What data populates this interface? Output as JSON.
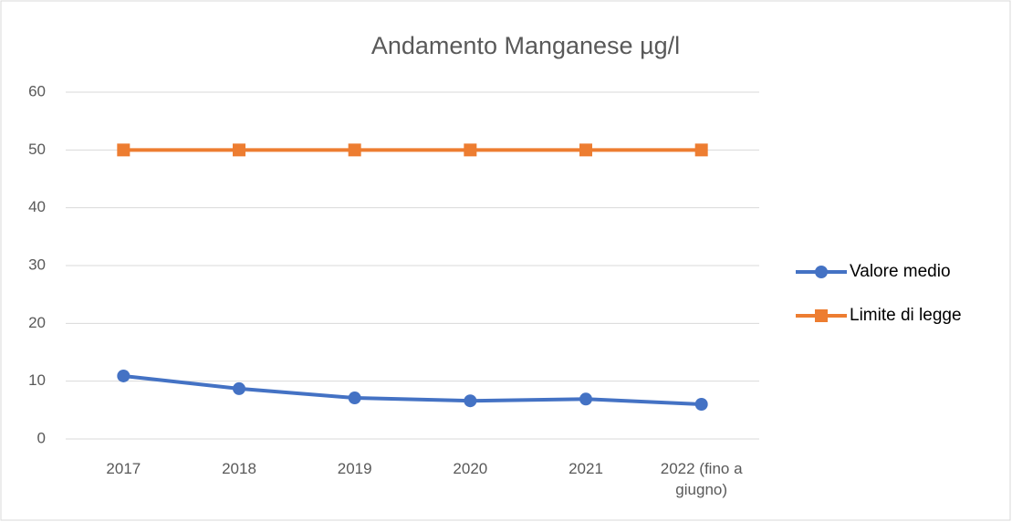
{
  "chart_data": {
    "type": "line",
    "title": "Andamento Manganese µg/l",
    "categories": [
      "2017",
      "2018",
      "2019",
      "2020",
      "2021",
      "2022 (fino a giugno)"
    ],
    "series": [
      {
        "name": "Valore medio",
        "color": "#4472c4",
        "marker": "circle",
        "values": [
          10.9,
          8.7,
          7.1,
          6.6,
          6.9,
          6.0
        ]
      },
      {
        "name": "Limite di legge",
        "color": "#ed7d31",
        "marker": "square",
        "values": [
          50,
          50,
          50,
          50,
          50,
          50
        ]
      }
    ],
    "ylim": [
      0,
      60
    ],
    "yticks": [
      0,
      10,
      20,
      30,
      40,
      50,
      60
    ],
    "grid": true,
    "legend": "right"
  }
}
